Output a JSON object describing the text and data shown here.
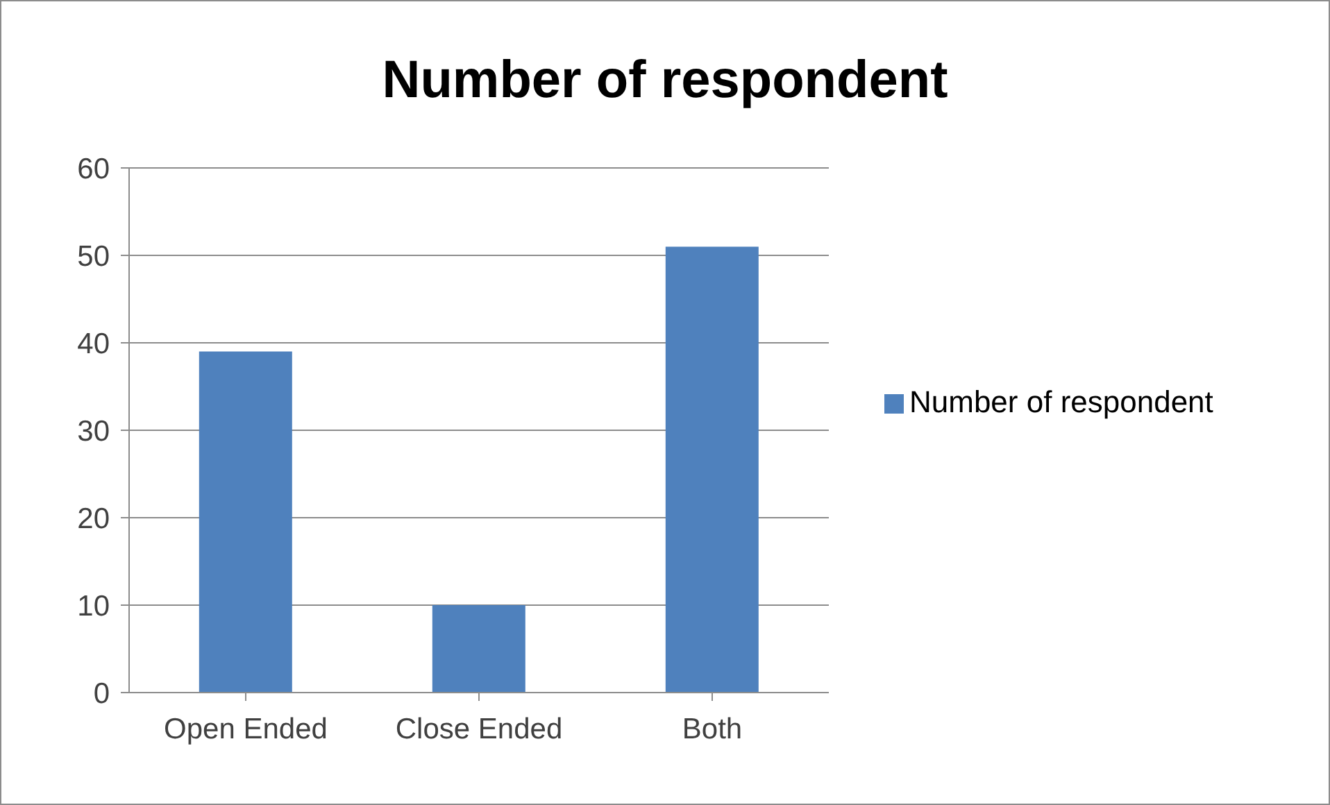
{
  "chart_data": {
    "type": "bar",
    "title": "Number of respondent",
    "categories": [
      "Open Ended",
      "Close Ended",
      "Both"
    ],
    "series": [
      {
        "name": "Number of respondent",
        "color": "#4f81bd",
        "values": [
          39,
          10,
          51
        ]
      }
    ],
    "ylim": [
      0,
      60
    ],
    "yticks": [
      0,
      10,
      20,
      30,
      40,
      50,
      60
    ],
    "grid": "y",
    "legend": "right"
  }
}
